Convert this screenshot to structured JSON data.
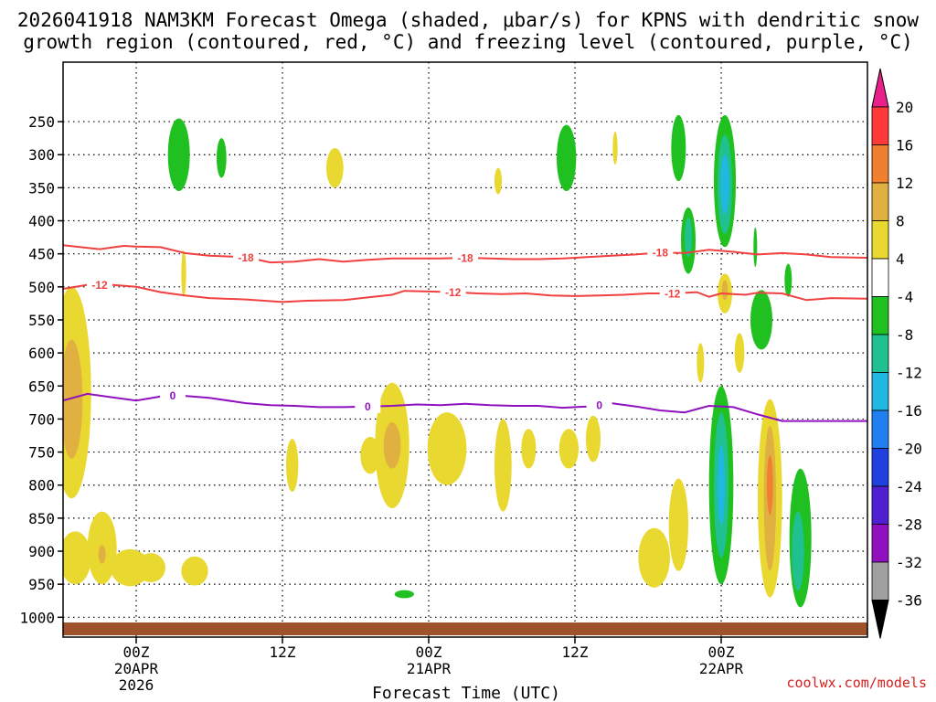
{
  "chart_data": {
    "type": "contour-timeheight",
    "title_line1": "2026041918 NAM3KM Forecast Omega (shaded, μbar/s) for KPNS with dendritic snow",
    "title_line2": "growth region (contoured, red, °C) and freezing level (contoured, purple, °C)",
    "xlabel": "Forecast Time (UTC)",
    "xlim": [
      -6,
      60
    ],
    "ylim": [
      1030,
      160
    ],
    "x_ticks": [
      {
        "hour": 0,
        "label": "00Z",
        "sub1": "20APR",
        "sub2": "2026"
      },
      {
        "hour": 12,
        "label": "12Z",
        "sub1": "",
        "sub2": ""
      },
      {
        "hour": 24,
        "label": "00Z",
        "sub1": "21APR",
        "sub2": ""
      },
      {
        "hour": 36,
        "label": "12Z",
        "sub1": "",
        "sub2": ""
      },
      {
        "hour": 48,
        "label": "00Z",
        "sub1": "22APR",
        "sub2": ""
      }
    ],
    "y_ticks": [
      {
        "p": 250,
        "label": "250"
      },
      {
        "p": 300,
        "label": "300"
      },
      {
        "p": 350,
        "label": "350"
      },
      {
        "p": 400,
        "label": "400"
      },
      {
        "p": 450,
        "label": "450"
      },
      {
        "p": 500,
        "label": "500"
      },
      {
        "p": 550,
        "label": "550"
      },
      {
        "p": 600,
        "label": "600"
      },
      {
        "p": 650,
        "label": "650"
      },
      {
        "p": 700,
        "label": "700"
      },
      {
        "p": 750,
        "label": "750"
      },
      {
        "p": 800,
        "label": "800"
      },
      {
        "p": 850,
        "label": "850"
      },
      {
        "p": 900,
        "label": "900"
      },
      {
        "p": 950,
        "label": "950"
      },
      {
        "p": 1000,
        "label": "1000"
      }
    ],
    "colorbar": {
      "levels": [
        {
          "value": "20",
          "color": "#ff3838"
        },
        {
          "value": "16",
          "color": "#f08030"
        },
        {
          "value": "12",
          "color": "#e0b040"
        },
        {
          "value": "8",
          "color": "#e8d830"
        },
        {
          "value": "4",
          "color": "#ffffff"
        },
        {
          "value": "-4",
          "color": "#20c020"
        },
        {
          "value": "-8",
          "color": "#20c090"
        },
        {
          "value": "-12",
          "color": "#20b8e0"
        },
        {
          "value": "-16",
          "color": "#2080f0"
        },
        {
          "value": "-20",
          "color": "#2040e0"
        },
        {
          "value": "-24",
          "color": "#5020d0"
        },
        {
          "value": "-28",
          "color": "#9010c0"
        },
        {
          "value": "-32",
          "color": "#a0a0a0"
        },
        {
          "value": "-36",
          "color": ""
        }
      ],
      "top_arrow_color": "#e8208a",
      "bottom_arrow_color": "#000000"
    },
    "contours": [
      {
        "name": "dgz-top",
        "label": "-18",
        "color": "#f04040",
        "label_hours": [
          9,
          27,
          43
        ],
        "points": [
          [
            -6,
            437
          ],
          [
            -3,
            443
          ],
          [
            -1,
            438
          ],
          [
            0,
            439
          ],
          [
            2,
            440
          ],
          [
            4,
            449
          ],
          [
            6,
            453
          ],
          [
            9,
            455
          ],
          [
            11,
            463
          ],
          [
            13,
            462
          ],
          [
            15,
            458
          ],
          [
            17,
            462
          ],
          [
            19,
            459
          ],
          [
            21,
            457
          ],
          [
            23,
            457
          ],
          [
            25,
            457
          ],
          [
            27,
            456
          ],
          [
            29,
            457
          ],
          [
            31,
            458
          ],
          [
            33,
            458
          ],
          [
            35,
            457
          ],
          [
            37,
            455
          ],
          [
            39,
            453
          ],
          [
            41,
            451
          ],
          [
            43,
            448
          ],
          [
            45,
            449
          ],
          [
            47,
            444
          ],
          [
            49,
            447
          ],
          [
            51,
            451
          ],
          [
            53,
            449
          ],
          [
            55,
            451
          ],
          [
            57,
            455
          ],
          [
            60,
            456
          ]
        ]
      },
      {
        "name": "dgz-bottom",
        "label": "-12",
        "color": "#f04040",
        "label_hours": [
          -3,
          26,
          44
        ],
        "points": [
          [
            -6,
            503
          ],
          [
            -4,
            497
          ],
          [
            -2,
            497
          ],
          [
            0,
            500
          ],
          [
            2,
            508
          ],
          [
            4,
            513
          ],
          [
            6,
            517
          ],
          [
            9,
            519
          ],
          [
            12,
            523
          ],
          [
            14,
            521
          ],
          [
            17,
            520
          ],
          [
            19,
            516
          ],
          [
            21,
            512
          ],
          [
            22,
            506
          ],
          [
            24,
            507
          ],
          [
            26,
            508
          ],
          [
            28,
            510
          ],
          [
            30,
            511
          ],
          [
            32,
            510
          ],
          [
            34,
            513
          ],
          [
            36,
            514
          ],
          [
            38,
            513
          ],
          [
            40,
            512
          ],
          [
            42,
            510
          ],
          [
            44,
            510
          ],
          [
            46,
            508
          ],
          [
            47,
            515
          ],
          [
            48,
            510
          ],
          [
            50,
            512
          ],
          [
            51,
            509
          ],
          [
            53,
            510
          ],
          [
            55,
            520
          ],
          [
            57,
            517
          ],
          [
            60,
            518
          ]
        ]
      },
      {
        "name": "freezing-level",
        "label": "0",
        "color": "#9010c0",
        "label_hours": [
          3,
          19,
          38
        ],
        "points": [
          [
            -6,
            672
          ],
          [
            -4,
            662
          ],
          [
            -2,
            667
          ],
          [
            0,
            672
          ],
          [
            2,
            666
          ],
          [
            3,
            664
          ],
          [
            4,
            665
          ],
          [
            6,
            668
          ],
          [
            9,
            676
          ],
          [
            11,
            679
          ],
          [
            13,
            680
          ],
          [
            15,
            682
          ],
          [
            17,
            682
          ],
          [
            19,
            681
          ],
          [
            21,
            680
          ],
          [
            23,
            678
          ],
          [
            25,
            679
          ],
          [
            27,
            677
          ],
          [
            29,
            679
          ],
          [
            31,
            680
          ],
          [
            33,
            680
          ],
          [
            35,
            683
          ],
          [
            37,
            681
          ],
          [
            39,
            676
          ],
          [
            41,
            681
          ],
          [
            43,
            687
          ],
          [
            45,
            690
          ],
          [
            47,
            680
          ],
          [
            49,
            682
          ],
          [
            51,
            693
          ],
          [
            53,
            703
          ],
          [
            55,
            703
          ],
          [
            57,
            703
          ],
          [
            60,
            703
          ]
        ]
      }
    ],
    "omega_fields": [
      {
        "hour": -5.3,
        "p": 660,
        "rx": 1.6,
        "ry": 160,
        "color": "#e8d830"
      },
      {
        "hour": -5.3,
        "p": 670,
        "rx": 0.9,
        "ry": 90,
        "color": "#e0b040"
      },
      {
        "hour": -5.0,
        "p": 910,
        "rx": 1.3,
        "ry": 40,
        "color": "#e8d830"
      },
      {
        "hour": -2.8,
        "p": 895,
        "rx": 1.2,
        "ry": 55,
        "color": "#e8d830"
      },
      {
        "hour": -2.8,
        "p": 905,
        "rx": 0.3,
        "ry": 14,
        "color": "#e0b040"
      },
      {
        "hour": -0.5,
        "p": 925,
        "rx": 1.6,
        "ry": 28,
        "color": "#e8d830"
      },
      {
        "hour": 1.2,
        "p": 925,
        "rx": 1.2,
        "ry": 22,
        "color": "#e8d830"
      },
      {
        "hour": 4.8,
        "p": 930,
        "rx": 1.1,
        "ry": 22,
        "color": "#e8d830"
      },
      {
        "hour": 3.5,
        "p": 300,
        "rx": 0.9,
        "ry": 55,
        "color": "#20c020"
      },
      {
        "hour": 7.0,
        "p": 305,
        "rx": 0.4,
        "ry": 30,
        "color": "#20c020"
      },
      {
        "hour": 3.9,
        "p": 480,
        "rx": 0.2,
        "ry": 35,
        "color": "#e8d830"
      },
      {
        "hour": 12.8,
        "p": 770,
        "rx": 0.5,
        "ry": 40,
        "color": "#e8d830"
      },
      {
        "hour": 16.3,
        "p": 320,
        "rx": 0.7,
        "ry": 30,
        "color": "#e8d830"
      },
      {
        "hour": 21.0,
        "p": 740,
        "rx": 1.4,
        "ry": 95,
        "color": "#e8d830"
      },
      {
        "hour": 21.0,
        "p": 740,
        "rx": 0.7,
        "ry": 35,
        "color": "#e0b040"
      },
      {
        "hour": 19.2,
        "p": 755,
        "rx": 0.8,
        "ry": 28,
        "color": "#e8d830"
      },
      {
        "hour": 25.5,
        "p": 745,
        "rx": 1.6,
        "ry": 55,
        "color": "#e8d830"
      },
      {
        "hour": 22.0,
        "p": 965,
        "rx": 0.8,
        "ry": 6,
        "color": "#20c020"
      },
      {
        "hour": 29.7,
        "p": 340,
        "rx": 0.3,
        "ry": 20,
        "color": "#e8d830"
      },
      {
        "hour": 30.1,
        "p": 770,
        "rx": 0.7,
        "ry": 70,
        "color": "#e8d830"
      },
      {
        "hour": 32.2,
        "p": 745,
        "rx": 0.6,
        "ry": 30,
        "color": "#e8d830"
      },
      {
        "hour": 35.5,
        "p": 745,
        "rx": 0.8,
        "ry": 30,
        "color": "#e8d830"
      },
      {
        "hour": 37.5,
        "p": 730,
        "rx": 0.6,
        "ry": 35,
        "color": "#e8d830"
      },
      {
        "hour": 35.3,
        "p": 305,
        "rx": 0.8,
        "ry": 50,
        "color": "#20c020"
      },
      {
        "hour": 39.3,
        "p": 290,
        "rx": 0.2,
        "ry": 25,
        "color": "#e8d830"
      },
      {
        "hour": 42.5,
        "p": 910,
        "rx": 1.3,
        "ry": 45,
        "color": "#e8d830"
      },
      {
        "hour": 44.5,
        "p": 860,
        "rx": 0.8,
        "ry": 70,
        "color": "#e8d830"
      },
      {
        "hour": 44.5,
        "p": 290,
        "rx": 0.6,
        "ry": 50,
        "color": "#20c020"
      },
      {
        "hour": 45.3,
        "p": 430,
        "rx": 0.6,
        "ry": 50,
        "color": "#20c020"
      },
      {
        "hour": 45.3,
        "p": 425,
        "rx": 0.3,
        "ry": 30,
        "color": "#20c090"
      },
      {
        "hour": 46.3,
        "p": 615,
        "rx": 0.3,
        "ry": 30,
        "color": "#e8d830"
      },
      {
        "hour": 48.3,
        "p": 340,
        "rx": 0.9,
        "ry": 100,
        "color": "#20c020"
      },
      {
        "hour": 48.3,
        "p": 345,
        "rx": 0.6,
        "ry": 75,
        "color": "#20c090"
      },
      {
        "hour": 48.3,
        "p": 345,
        "rx": 0.35,
        "ry": 45,
        "color": "#20b8e0"
      },
      {
        "hour": 48.3,
        "p": 510,
        "rx": 0.6,
        "ry": 30,
        "color": "#e8d830"
      },
      {
        "hour": 48.3,
        "p": 505,
        "rx": 0.25,
        "ry": 15,
        "color": "#e0b040"
      },
      {
        "hour": 48.0,
        "p": 800,
        "rx": 1.0,
        "ry": 150,
        "color": "#20c020"
      },
      {
        "hour": 48.0,
        "p": 800,
        "rx": 0.6,
        "ry": 110,
        "color": "#20c090"
      },
      {
        "hour": 48.0,
        "p": 800,
        "rx": 0.3,
        "ry": 60,
        "color": "#20b8e0"
      },
      {
        "hour": 49.5,
        "p": 600,
        "rx": 0.4,
        "ry": 30,
        "color": "#e8d830"
      },
      {
        "hour": 50.8,
        "p": 440,
        "rx": 0.15,
        "ry": 30,
        "color": "#20c020"
      },
      {
        "hour": 51.3,
        "p": 550,
        "rx": 0.9,
        "ry": 45,
        "color": "#20c020"
      },
      {
        "hour": 52.0,
        "p": 820,
        "rx": 1.0,
        "ry": 150,
        "color": "#e8d830"
      },
      {
        "hour": 52.0,
        "p": 820,
        "rx": 0.5,
        "ry": 110,
        "color": "#e0b040"
      },
      {
        "hour": 52.0,
        "p": 800,
        "rx": 0.25,
        "ry": 45,
        "color": "#f08030"
      },
      {
        "hour": 53.5,
        "p": 490,
        "rx": 0.3,
        "ry": 25,
        "color": "#20c020"
      },
      {
        "hour": 54.5,
        "p": 880,
        "rx": 0.9,
        "ry": 105,
        "color": "#20c020"
      },
      {
        "hour": 54.3,
        "p": 900,
        "rx": 0.5,
        "ry": 60,
        "color": "#20c090"
      }
    ],
    "ground_color": "#a0522d"
  },
  "watermark": "coolwx.com/models"
}
